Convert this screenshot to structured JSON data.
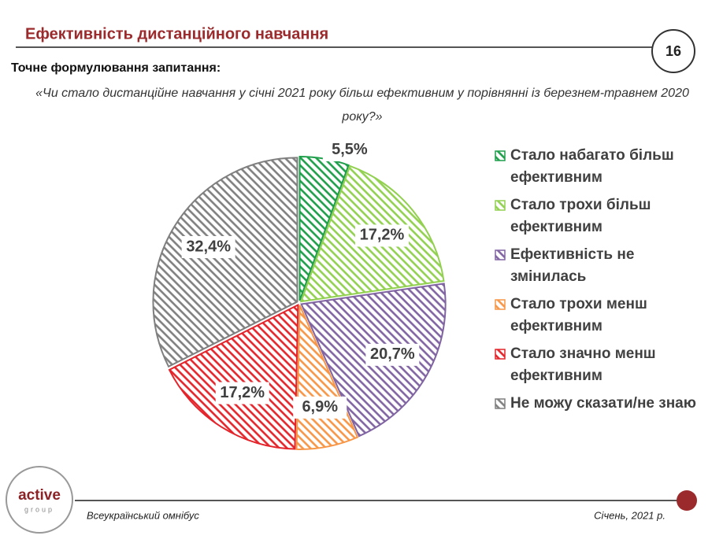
{
  "header": {
    "title": "Ефективність дистанційного навчання",
    "page_number": "16",
    "question_label": "Точне формулювання запитання:",
    "question": "«Чи стало дистанційне навчання у січні 2021 року більш ефективним у порівнянні із березнем-травнем 2020 року?»"
  },
  "chart_data": {
    "type": "pie",
    "categories": [
      "Стало набагато більш ефективним",
      "Стало трохи більш ефективним",
      "Ефективність не змінилась",
      "Стало трохи менш ефективним",
      "Стало значно менш ефективним",
      "Не можу сказати/не знаю"
    ],
    "values": [
      5.5,
      17.2,
      20.7,
      6.9,
      17.2,
      32.4
    ],
    "value_labels": [
      "5,5%",
      "17,2%",
      "20,7%",
      "6,9%",
      "17,2%",
      "32,4%"
    ],
    "colors": [
      "#1e9e4a",
      "#92d050",
      "#8064a2",
      "#f79646",
      "#e3252b",
      "#7f7f7f"
    ],
    "legend": "right"
  },
  "footer": {
    "logo": "active",
    "logo_sub": "group",
    "left": "Всеукраїнський омнібус",
    "right": "Січень, 2021 р."
  }
}
